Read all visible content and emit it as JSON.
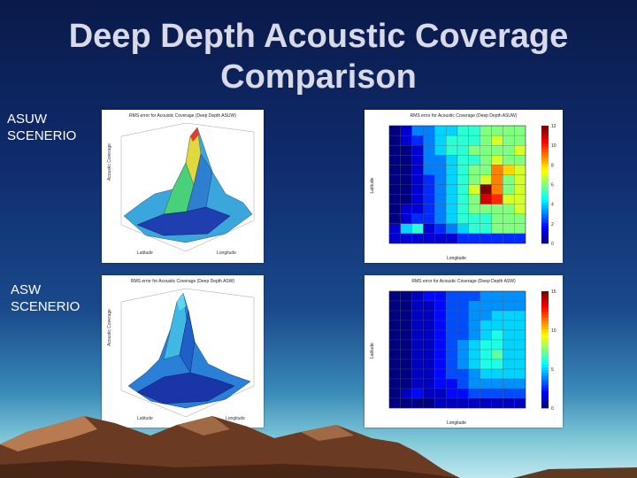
{
  "slide": {
    "title_line1": "Deep Depth Acoustic Coverage",
    "title_line2": "Comparison"
  },
  "rows": [
    {
      "label_line1": "ASUW",
      "label_line2": "SCENERIO",
      "surface_title": "RMS error for Acoustic Coverage (Deep Depth ASUW)",
      "heatmap_title": "RMS error for Acoustic Coverage (Deep Depth ASUW)"
    },
    {
      "label_line1": "ASW",
      "label_line2": "SCENERIO",
      "surface_title": "RMS error for Acoustic Coverage (Deep Depth ASW)",
      "heatmap_title": "RMS error for Acoustic Coverage (Deep Depth ASW)"
    }
  ],
  "axes": {
    "surface_zlabel": "Acoustic Coverage",
    "surface_xlabel": "Longitude",
    "surface_ylabel": "Latitude",
    "heatmap_xlabel": "Longitude",
    "heatmap_ylabel": "Latitude"
  },
  "colors": {
    "background_top": "#0a1a4a",
    "background_bottom": "#bfe7ee",
    "title": "#d9d9e8",
    "label": "#ffffff"
  },
  "chart_data": [
    {
      "type": "heatmap",
      "title": "RMS error for Acoustic Coverage (Deep Depth ASUW)",
      "colorbar_ticks": [
        0,
        2,
        4,
        6,
        8,
        10,
        12
      ],
      "grid": [
        [
          0,
          1,
          3,
          3,
          4,
          4,
          5,
          5,
          6,
          6,
          6,
          6
        ],
        [
          0,
          1,
          2,
          3,
          4,
          5,
          5,
          5,
          6,
          7,
          6,
          6
        ],
        [
          0,
          0,
          1,
          3,
          4,
          5,
          5,
          6,
          6,
          6,
          6,
          7
        ],
        [
          0,
          0,
          1,
          3,
          3,
          4,
          5,
          5,
          6,
          7,
          6,
          6
        ],
        [
          0,
          0,
          1,
          3,
          3,
          4,
          5,
          6,
          6,
          9,
          8,
          7
        ],
        [
          0,
          0,
          1,
          2,
          3,
          4,
          5,
          6,
          7,
          9,
          6,
          7
        ],
        [
          0,
          0,
          1,
          2,
          3,
          4,
          5,
          7,
          12,
          9,
          6,
          7
        ],
        [
          0,
          0,
          1,
          2,
          3,
          4,
          5,
          6,
          11,
          10,
          7,
          7
        ],
        [
          0,
          1,
          1,
          2,
          3,
          4,
          5,
          6,
          6,
          6,
          6,
          7
        ],
        [
          0,
          1,
          2,
          2,
          3,
          4,
          5,
          5,
          5,
          6,
          6,
          6
        ],
        [
          1,
          4,
          5,
          1,
          2,
          3,
          4,
          5,
          5,
          6,
          6,
          6
        ],
        [
          1,
          1,
          1,
          1,
          1,
          1,
          2,
          2,
          2,
          2,
          2,
          2
        ]
      ]
    },
    {
      "type": "heatmap",
      "title": "RMS error for Acoustic Coverage (Deep Depth ASW)",
      "colorbar_ticks": [
        0,
        5,
        10,
        15
      ],
      "grid": [
        [
          0,
          0,
          1,
          2,
          2,
          3,
          3,
          3,
          4,
          4,
          4,
          4
        ],
        [
          0,
          0,
          1,
          1,
          2,
          3,
          3,
          4,
          4,
          4,
          4,
          4
        ],
        [
          0,
          0,
          1,
          1,
          2,
          3,
          3,
          4,
          4,
          5,
          5,
          5
        ],
        [
          0,
          0,
          1,
          1,
          2,
          3,
          3,
          4,
          5,
          5,
          5,
          5
        ],
        [
          0,
          0,
          1,
          1,
          2,
          3,
          3,
          4,
          5,
          6,
          5,
          5
        ],
        [
          0,
          0,
          1,
          1,
          2,
          3,
          4,
          5,
          6,
          6,
          5,
          5
        ],
        [
          0,
          0,
          1,
          1,
          2,
          3,
          4,
          5,
          6,
          7,
          5,
          5
        ],
        [
          0,
          0,
          1,
          1,
          2,
          3,
          4,
          5,
          6,
          6,
          5,
          5
        ],
        [
          0,
          0,
          1,
          1,
          2,
          3,
          3,
          4,
          5,
          5,
          5,
          5
        ],
        [
          0,
          0,
          1,
          1,
          2,
          2,
          3,
          4,
          4,
          4,
          4,
          4
        ],
        [
          0,
          1,
          2,
          1,
          1,
          2,
          2,
          3,
          3,
          3,
          3,
          3
        ],
        [
          0,
          0,
          0,
          0,
          1,
          1,
          1,
          1,
          1,
          1,
          1,
          1
        ]
      ]
    }
  ]
}
